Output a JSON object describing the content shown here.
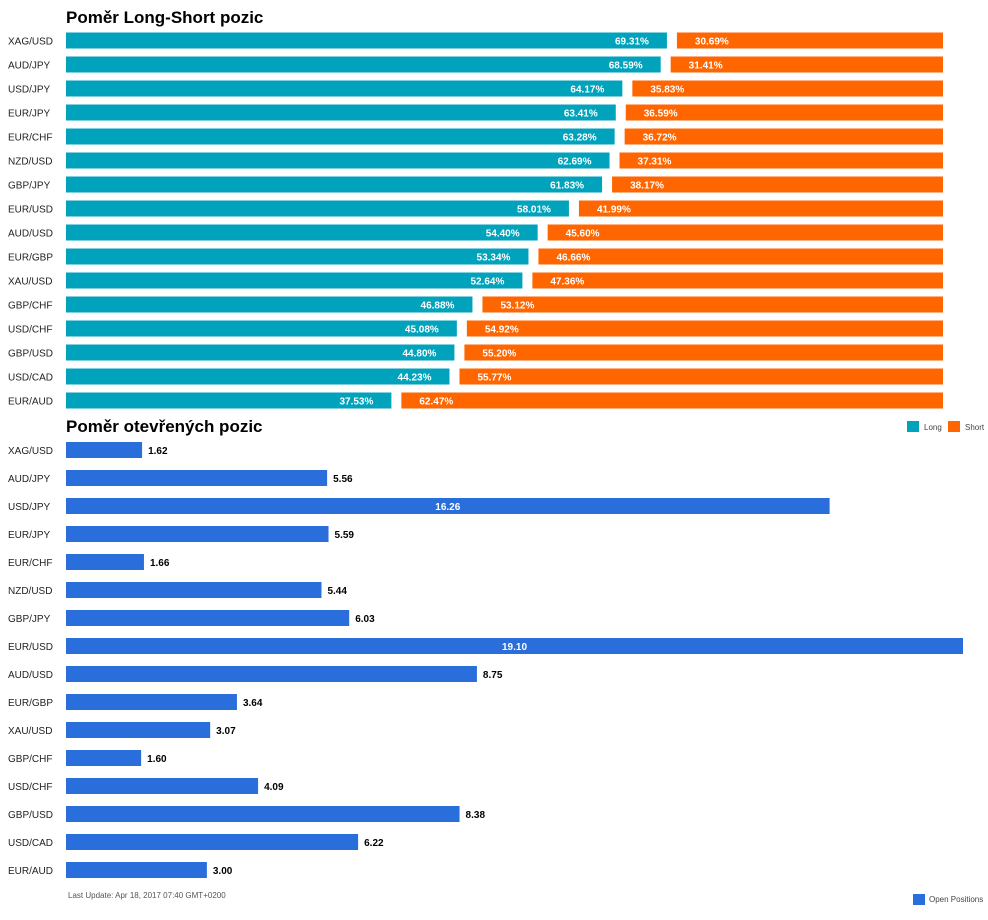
{
  "chart_data": [
    {
      "type": "bar",
      "orientation": "horizontal",
      "stacked": true,
      "title": "Poměr Long-Short pozic",
      "categories": [
        "XAG/USD",
        "AUD/JPY",
        "USD/JPY",
        "EUR/JPY",
        "EUR/CHF",
        "NZD/USD",
        "GBP/JPY",
        "EUR/USD",
        "AUD/USD",
        "EUR/GBP",
        "XAU/USD",
        "GBP/CHF",
        "USD/CHF",
        "GBP/USD",
        "USD/CAD",
        "EUR/AUD"
      ],
      "series": [
        {
          "name": "Long",
          "color": "#00A3BB",
          "values": [
            69.31,
            68.59,
            64.17,
            63.41,
            63.28,
            62.69,
            61.83,
            58.01,
            54.4,
            53.34,
            52.64,
            46.88,
            45.08,
            44.8,
            44.23,
            37.53
          ]
        },
        {
          "name": "Short",
          "color": "#FF6600",
          "values": [
            30.69,
            31.41,
            35.83,
            36.59,
            36.72,
            37.31,
            38.17,
            41.99,
            45.6,
            46.66,
            47.36,
            53.12,
            54.92,
            55.2,
            55.77,
            62.47
          ]
        }
      ],
      "labels": {
        "long": [
          "69.31%",
          "68.59%",
          "64.17%",
          "63.41%",
          "63.28%",
          "62.69%",
          "61.83%",
          "58.01%",
          "54.40%",
          "53.34%",
          "52.64%",
          "46.88%",
          "45.08%",
          "44.80%",
          "44.23%",
          "37.53%"
        ],
        "short": [
          "30.69%",
          "31.41%",
          "35.83%",
          "36.59%",
          "36.72%",
          "37.31%",
          "38.17%",
          "41.99%",
          "45.60%",
          "46.66%",
          "47.36%",
          "53.12%",
          "54.92%",
          "55.20%",
          "55.77%",
          "62.47%"
        ]
      },
      "xlim": [
        0,
        100
      ],
      "legend_position": "bottom-right",
      "grid": false
    },
    {
      "type": "bar",
      "orientation": "horizontal",
      "title": "Poměr otevřených pozic",
      "categories": [
        "XAG/USD",
        "AUD/JPY",
        "USD/JPY",
        "EUR/JPY",
        "EUR/CHF",
        "NZD/USD",
        "GBP/JPY",
        "EUR/USD",
        "AUD/USD",
        "EUR/GBP",
        "XAU/USD",
        "GBP/CHF",
        "USD/CHF",
        "GBP/USD",
        "USD/CAD",
        "EUR/AUD"
      ],
      "series": [
        {
          "name": "Open Positions",
          "color": "#2A6EDB",
          "values": [
            1.62,
            5.56,
            16.26,
            5.59,
            1.66,
            5.44,
            6.03,
            19.1,
            8.75,
            3.64,
            3.07,
            1.6,
            4.09,
            8.38,
            6.22,
            3.0
          ]
        }
      ],
      "labels": [
        "1.62",
        "5.56",
        "16.26",
        "5.59",
        "1.66",
        "5.44",
        "6.03",
        "19.10",
        "8.75",
        "3.64",
        "3.07",
        "1.60",
        "4.09",
        "8.38",
        "6.22",
        "3.00"
      ],
      "xlim": [
        0,
        19.1
      ],
      "legend_position": "bottom-right",
      "grid": false
    }
  ],
  "footer": {
    "last_update": "Last Update: Apr 18, 2017 07:40 GMT+0200"
  }
}
